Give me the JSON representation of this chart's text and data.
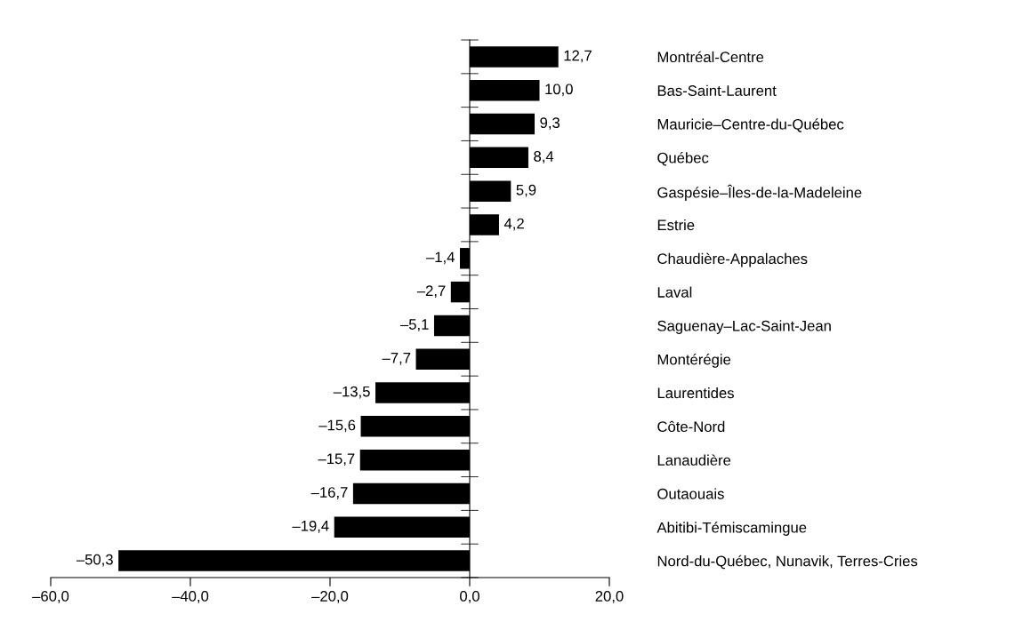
{
  "chart_data": {
    "type": "bar",
    "orientation": "horizontal",
    "categories": [
      "Montréal-Centre",
      "Bas-Saint-Laurent",
      "Mauricie–Centre-du-Québec",
      "Québec",
      "Gaspésie–Îles-de-la-Madeleine",
      "Estrie",
      "Chaudière-Appalaches",
      "Laval",
      "Saguenay–Lac-Saint-Jean",
      "Montérégie",
      "Laurentides",
      "Côte-Nord",
      "Lanaudière",
      "Outaouais",
      "Abitibi-Témiscamingue",
      "Nord-du-Québec, Nunavik, Terres-Cries"
    ],
    "values": [
      12.7,
      10.0,
      9.3,
      8.4,
      5.9,
      4.2,
      -1.4,
      -2.7,
      -5.1,
      -7.7,
      -13.5,
      -15.6,
      -15.7,
      -16.7,
      -19.4,
      -50.3
    ],
    "value_labels": [
      "12,7",
      "10,0",
      "9,3",
      "8,4",
      "5,9",
      "4,2",
      "–1,4",
      "–2,7",
      "–5,1",
      "–7,7",
      "–13,5",
      "–15,6",
      "–15,7",
      "–16,7",
      "–19,4",
      "–50,3"
    ],
    "color": "#000000",
    "xlim": [
      -60,
      20
    ],
    "xticks": [
      {
        "value": -60,
        "label": "–60,0"
      },
      {
        "value": -40,
        "label": "–40,0"
      },
      {
        "value": -20,
        "label": "–20,0"
      },
      {
        "value": 0,
        "label": "0,0"
      },
      {
        "value": 20,
        "label": "20,0"
      }
    ],
    "legend": false
  }
}
